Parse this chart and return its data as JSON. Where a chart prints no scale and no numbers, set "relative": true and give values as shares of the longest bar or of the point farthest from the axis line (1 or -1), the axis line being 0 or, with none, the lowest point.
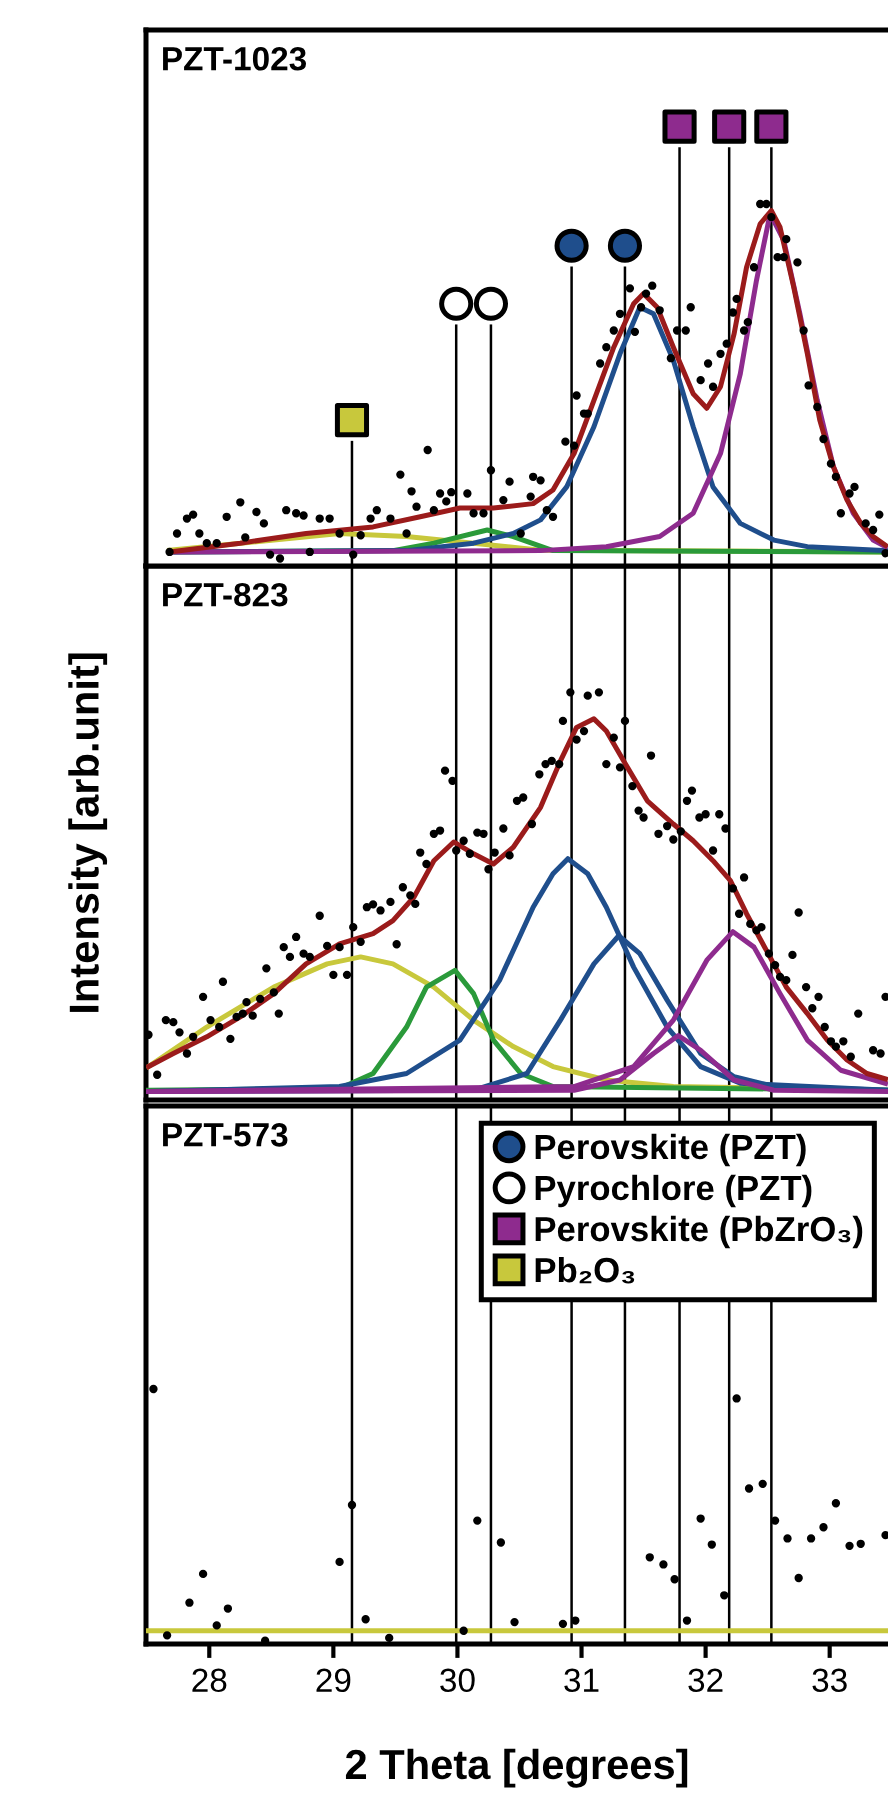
{
  "chart_data": [
    {
      "type": "scatter",
      "title": "PZT-1023",
      "relative": true,
      "xlim": [
        27.49,
        33.47
      ],
      "tick_labels": false,
      "legend": "bottom right",
      "ref_lines": [
        {
          "axis": "x",
          "value": 29.15,
          "color": "#000000"
        },
        {
          "axis": "x",
          "value": 29.99,
          "color": "#000000"
        },
        {
          "axis": "x",
          "value": 30.27,
          "color": "#000000"
        },
        {
          "axis": "x",
          "value": 30.92,
          "color": "#000000"
        },
        {
          "axis": "x",
          "value": 31.35,
          "color": "#000000"
        },
        {
          "axis": "x",
          "value": 31.79,
          "color": "#000000"
        },
        {
          "axis": "x",
          "value": 32.19,
          "color": "#000000"
        },
        {
          "axis": "x",
          "value": 32.53,
          "color": "#000000"
        }
      ],
      "series": [
        {
          "marker": "circle",
          "color": "#000000",
          "x": [
            27.68,
            27.74,
            27.82,
            27.87,
            27.92,
            27.98,
            28.06,
            28.14,
            28.25,
            28.29,
            28.38,
            28.44,
            28.49,
            28.57,
            28.62,
            28.7,
            28.76,
            28.81,
            28.89,
            28.97,
            29.05,
            29.16,
            29.22,
            29.3,
            29.35,
            29.46,
            29.54,
            29.59,
            29.63,
            29.67,
            29.76,
            29.81,
            29.86,
            29.91,
            29.95,
            30.08,
            30.13,
            30.21,
            30.27,
            30.37,
            30.42,
            30.51,
            30.59,
            30.61,
            30.67,
            30.72,
            30.77,
            30.87,
            30.94,
            30.96,
            31.02,
            31.05,
            31.15,
            31.2,
            31.26,
            31.31,
            31.39,
            31.43,
            31.48,
            31.52,
            31.57,
            31.63,
            31.72,
            31.77,
            31.84,
            31.88,
            31.96,
            32.02,
            32.06,
            32.12,
            32.17,
            32.22,
            32.25,
            32.31,
            32.34,
            32.39,
            32.44,
            32.49,
            32.53,
            32.58,
            32.63,
            32.65,
            32.74,
            32.79,
            32.83,
            32.9,
            32.95,
            33.01,
            33.05,
            33.09,
            33.16,
            33.2,
            33.29,
            33.35,
            33.4,
            33.45
          ],
          "values": [
            0.032,
            0.074,
            0.108,
            0.117,
            0.074,
            0.052,
            0.052,
            0.112,
            0.145,
            0.065,
            0.123,
            0.097,
            0.026,
            0.017,
            0.127,
            0.12,
            0.115,
            0.032,
            0.108,
            0.108,
            0.074,
            0.026,
            0.07,
            0.108,
            0.127,
            0.108,
            0.208,
            0.074,
            0.17,
            0.135,
            0.264,
            0.127,
            0.165,
            0.147,
            0.168,
            0.165,
            0.12,
            0.12,
            0.218,
            0.15,
            0.192,
            0.074,
            0.158,
            0.203,
            0.195,
            0.127,
            0.112,
            0.283,
            0.274,
            0.388,
            0.347,
            0.347,
            0.461,
            0.498,
            0.536,
            0.574,
            0.632,
            0.533,
            0.589,
            0.62,
            0.638,
            0.582,
            0.473,
            0.536,
            0.536,
            0.589,
            0.423,
            0.461,
            0.408,
            0.483,
            0.506,
            0.577,
            0.608,
            0.536,
            0.555,
            0.68,
            0.824,
            0.824,
            0.794,
            0.703,
            0.703,
            0.744,
            0.691,
            0.536,
            0.411,
            0.362,
            0.289,
            0.233,
            0.203,
            0.12,
            0.165,
            0.18,
            0.097,
            0.082,
            0.117,
            0.029
          ]
        },
        {
          "type": "line",
          "color": "#c8c83c",
          "x": [
            27.68,
            29.05,
            29.59,
            30.13,
            30.67,
            33.45
          ],
          "values": [
            0.036,
            0.074,
            0.067,
            0.052,
            0.036,
            0.032
          ]
        },
        {
          "type": "line",
          "color": "#2a9a3a",
          "x": [
            27.68,
            29.48,
            29.81,
            30.24,
            30.45,
            30.77,
            33.45
          ],
          "values": [
            0.032,
            0.035,
            0.052,
            0.082,
            0.067,
            0.035,
            0.032
          ]
        },
        {
          "type": "line",
          "color": "#1f4e8c",
          "x": [
            27.68,
            29.59,
            30.13,
            30.45,
            30.67,
            30.88,
            31.1,
            31.31,
            31.47,
            31.58,
            31.74,
            31.9,
            32.06,
            32.28,
            32.55,
            32.82,
            33.45
          ],
          "values": [
            0.032,
            0.035,
            0.052,
            0.074,
            0.105,
            0.18,
            0.317,
            0.483,
            0.589,
            0.574,
            0.468,
            0.317,
            0.18,
            0.097,
            0.059,
            0.044,
            0.035
          ]
        },
        {
          "type": "line",
          "color": "#8e2b8e",
          "x": [
            27.68,
            30.67,
            31.2,
            31.63,
            31.9,
            32.12,
            32.28,
            32.41,
            32.52,
            32.63,
            32.76,
            32.9,
            33.03,
            33.19,
            33.35,
            33.45
          ],
          "values": [
            0.032,
            0.035,
            0.044,
            0.067,
            0.12,
            0.256,
            0.438,
            0.65,
            0.802,
            0.741,
            0.574,
            0.377,
            0.226,
            0.12,
            0.059,
            0.044
          ]
        },
        {
          "type": "line",
          "color": "#9b1b1b",
          "x": [
            27.68,
            28.25,
            28.78,
            29.32,
            29.7,
            30.02,
            30.29,
            30.61,
            30.77,
            30.94,
            31.1,
            31.26,
            31.42,
            31.5,
            31.61,
            31.74,
            31.9,
            32.01,
            32.12,
            32.23,
            32.33,
            32.44,
            32.53,
            32.6,
            32.71,
            32.82,
            32.92,
            33.03,
            33.14,
            33.25,
            33.35,
            33.45
          ],
          "values": [
            0.032,
            0.052,
            0.074,
            0.089,
            0.112,
            0.132,
            0.132,
            0.142,
            0.173,
            0.256,
            0.377,
            0.498,
            0.597,
            0.62,
            0.589,
            0.498,
            0.392,
            0.359,
            0.408,
            0.529,
            0.68,
            0.779,
            0.809,
            0.771,
            0.635,
            0.483,
            0.332,
            0.226,
            0.15,
            0.097,
            0.067,
            0.047
          ]
        },
        {
          "name": "Perovskite (PZT)",
          "marker": "circle",
          "color": "#1f4e8c",
          "x": [
            30.92,
            31.35
          ],
          "values": [
            0.729,
            0.729
          ]
        },
        {
          "name": "Pyrochlore (PZT)",
          "marker": "circle",
          "color": "#ffffff",
          "x": [
            29.99,
            30.27
          ],
          "values": [
            0.597,
            0.597
          ]
        },
        {
          "name": "Perovskite (PbZrO₃)",
          "marker": "square",
          "color": "#8e2b8e",
          "x": [
            31.79,
            32.19,
            32.53
          ],
          "values": [
            1.0,
            1.0,
            1.0
          ]
        },
        {
          "name": "Pb₂O₃",
          "marker": "square",
          "color": "#c8c83c",
          "x": [
            29.15
          ],
          "values": [
            0.332
          ]
        }
      ]
    },
    {
      "type": "scatter",
      "title": "PZT-823",
      "ylabel": "Intensity [arb.unit]",
      "relative": true,
      "xlim": [
        27.49,
        33.47
      ],
      "tick_labels": false,
      "ref_lines": [
        {
          "axis": "x",
          "value": 29.15,
          "color": "#000000"
        },
        {
          "axis": "x",
          "value": 29.99,
          "color": "#000000"
        },
        {
          "axis": "x",
          "value": 30.27,
          "color": "#000000"
        },
        {
          "axis": "x",
          "value": 30.92,
          "color": "#000000"
        },
        {
          "axis": "x",
          "value": 31.35,
          "color": "#000000"
        },
        {
          "axis": "x",
          "value": 31.79,
          "color": "#000000"
        },
        {
          "axis": "x",
          "value": 32.19,
          "color": "#000000"
        },
        {
          "axis": "x",
          "value": 32.53,
          "color": "#000000"
        }
      ],
      "series": [
        {
          "marker": "circle",
          "color": "#000000",
          "x": [
            27.51,
            27.58,
            27.65,
            27.71,
            27.76,
            27.82,
            27.87,
            27.95,
            28.01,
            28.08,
            28.11,
            28.17,
            28.22,
            28.27,
            28.3,
            28.35,
            28.41,
            28.46,
            28.52,
            28.56,
            28.6,
            28.65,
            28.7,
            28.76,
            28.81,
            28.89,
            28.95,
            29.0,
            29.05,
            29.11,
            29.16,
            29.22,
            29.27,
            29.32,
            29.38,
            29.46,
            29.51,
            29.56,
            29.62,
            29.66,
            29.7,
            29.75,
            29.81,
            29.86,
            29.9,
            29.96,
            29.99,
            30.05,
            30.1,
            30.16,
            30.21,
            30.25,
            30.3,
            30.37,
            30.42,
            30.48,
            30.53,
            30.6,
            30.66,
            30.71,
            30.76,
            30.82,
            30.85,
            30.91,
            30.96,
            31.02,
            31.05,
            31.14,
            31.2,
            31.26,
            31.31,
            31.35,
            31.41,
            31.46,
            31.5,
            31.56,
            31.62,
            31.69,
            31.74,
            31.8,
            31.85,
            31.89,
            31.95,
            32.0,
            32.06,
            32.11,
            32.16,
            32.22,
            32.27,
            32.31,
            32.36,
            32.41,
            32.45,
            32.51,
            32.56,
            32.6,
            32.65,
            32.7,
            32.75,
            32.81,
            32.86,
            32.91,
            32.96,
            33.01,
            33.05,
            33.11,
            33.17,
            33.23,
            33.35,
            33.41,
            33.45
          ],
          "values": [
            0.16,
            0.062,
            0.196,
            0.191,
            0.166,
            0.114,
            0.155,
            0.253,
            0.196,
            0.179,
            0.29,
            0.15,
            0.204,
            0.212,
            0.24,
            0.207,
            0.248,
            0.323,
            0.264,
            0.212,
            0.375,
            0.351,
            0.4,
            0.359,
            0.351,
            0.452,
            0.378,
            0.307,
            0.375,
            0.307,
            0.424,
            0.388,
            0.473,
            0.48,
            0.465,
            0.486,
            0.382,
            0.522,
            0.502,
            0.481,
            0.607,
            0.579,
            0.653,
            0.661,
            0.808,
            0.783,
            0.612,
            0.636,
            0.604,
            0.656,
            0.653,
            0.566,
            0.607,
            0.666,
            0.6,
            0.734,
            0.742,
            0.677,
            0.799,
            0.824,
            0.832,
            0.824,
            0.93,
            1.0,
            0.884,
            0.905,
            0.992,
            1.0,
            0.824,
            0.889,
            0.816,
            0.93,
            0.77,
            0.71,
            0.693,
            0.845,
            0.653,
            0.672,
            0.639,
            0.659,
            0.734,
            0.759,
            0.693,
            0.701,
            0.612,
            0.701,
            0.666,
            0.519,
            0.457,
            0.546,
            0.432,
            0.416,
            0.424,
            0.359,
            0.331,
            0.302,
            0.294,
            0.356,
            0.46,
            0.277,
            0.225,
            0.253,
            0.179,
            0.144,
            0.131,
            0.144,
            0.106,
            0.212,
            0.122,
            0.114,
            0.253
          ]
        },
        {
          "type": "line",
          "color": "#c8c83c",
          "x": [
            27.51,
            27.98,
            28.52,
            28.95,
            29.22,
            29.48,
            29.81,
            30.13,
            30.45,
            30.77,
            31.2,
            31.74,
            33.45
          ],
          "values": [
            0.082,
            0.179,
            0.277,
            0.334,
            0.351,
            0.334,
            0.277,
            0.196,
            0.131,
            0.082,
            0.049,
            0.033,
            0.024
          ]
        },
        {
          "type": "line",
          "color": "#2a9a3a",
          "x": [
            27.51,
            29.05,
            29.32,
            29.59,
            29.75,
            29.98,
            30.13,
            30.29,
            30.51,
            30.77,
            33.45
          ],
          "values": [
            0.024,
            0.028,
            0.065,
            0.179,
            0.277,
            0.318,
            0.261,
            0.147,
            0.065,
            0.033,
            0.024
          ]
        },
        {
          "type": "line",
          "color": "#1f4e8c",
          "x": [
            27.51,
            29.05,
            29.59,
            30.02,
            30.34,
            30.61,
            30.77,
            30.89,
            31.05,
            31.2,
            31.42,
            31.69,
            31.96,
            32.28,
            33.45
          ],
          "values": [
            0.021,
            0.033,
            0.065,
            0.147,
            0.294,
            0.473,
            0.555,
            0.592,
            0.555,
            0.473,
            0.326,
            0.179,
            0.082,
            0.041,
            0.024
          ]
        },
        {
          "type": "line",
          "color": "#1f4e8c",
          "x": [
            27.51,
            30.13,
            30.56,
            30.83,
            31.1,
            31.3,
            31.47,
            31.69,
            31.96,
            32.23,
            32.55,
            33.45
          ],
          "values": [
            0.021,
            0.024,
            0.065,
            0.196,
            0.334,
            0.403,
            0.359,
            0.245,
            0.114,
            0.057,
            0.033,
            0.024
          ]
        },
        {
          "type": "line",
          "color": "#8e2b8e",
          "x": [
            27.51,
            30.94,
            31.42,
            31.74,
            32.01,
            32.22,
            32.39,
            32.6,
            32.82,
            33.09,
            33.45
          ],
          "values": [
            0.021,
            0.033,
            0.082,
            0.196,
            0.343,
            0.413,
            0.375,
            0.261,
            0.147,
            0.073,
            0.041
          ]
        },
        {
          "type": "line",
          "color": "#8e2b8e",
          "x": [
            27.51,
            30.94,
            31.31,
            31.58,
            31.78,
            31.96,
            32.23,
            32.55,
            33.45
          ],
          "values": [
            0.021,
            0.024,
            0.049,
            0.114,
            0.158,
            0.122,
            0.049,
            0.024,
            0.021
          ]
        },
        {
          "type": "line",
          "color": "#9b1b1b",
          "x": [
            27.51,
            27.71,
            27.98,
            28.25,
            28.52,
            28.78,
            29.05,
            29.32,
            29.48,
            29.65,
            29.81,
            29.97,
            30.13,
            30.29,
            30.45,
            30.67,
            30.83,
            30.96,
            31.1,
            31.2,
            31.37,
            31.53,
            31.74,
            31.9,
            32.06,
            32.2,
            32.33,
            32.49,
            32.65,
            32.82,
            32.98,
            33.14,
            33.3,
            33.45
          ],
          "values": [
            0.082,
            0.114,
            0.155,
            0.204,
            0.261,
            0.334,
            0.383,
            0.408,
            0.44,
            0.498,
            0.587,
            0.633,
            0.604,
            0.579,
            0.62,
            0.718,
            0.832,
            0.914,
            0.935,
            0.905,
            0.816,
            0.734,
            0.677,
            0.636,
            0.587,
            0.538,
            0.457,
            0.367,
            0.277,
            0.212,
            0.147,
            0.098,
            0.065,
            0.052
          ]
        }
      ]
    },
    {
      "type": "scatter",
      "title": "PZT-573",
      "xlabel": "2 Theta [degrees]",
      "relative": true,
      "xlim": [
        27.49,
        33.47
      ],
      "xticks": [
        28,
        29,
        30,
        31,
        32,
        33
      ],
      "tick_labels": "x",
      "ref_lines": [
        {
          "axis": "x",
          "value": 29.15,
          "color": "#000000"
        },
        {
          "axis": "x",
          "value": 29.99,
          "color": "#000000"
        },
        {
          "axis": "x",
          "value": 30.27,
          "color": "#000000"
        },
        {
          "axis": "x",
          "value": 30.92,
          "color": "#000000"
        },
        {
          "axis": "x",
          "value": 31.35,
          "color": "#000000"
        },
        {
          "axis": "x",
          "value": 31.79,
          "color": "#000000"
        },
        {
          "axis": "x",
          "value": 32.19,
          "color": "#000000"
        },
        {
          "axis": "x",
          "value": 32.53,
          "color": "#000000"
        }
      ],
      "series": [
        {
          "marker": "circle",
          "color": "#000000",
          "x": [
            27.55,
            27.66,
            27.84,
            27.95,
            28.06,
            28.15,
            28.45,
            29.05,
            29.15,
            29.26,
            29.45,
            30.05,
            30.16,
            30.35,
            30.46,
            30.85,
            30.95,
            31.55,
            31.66,
            31.75,
            31.85,
            31.96,
            32.05,
            32.15,
            32.25,
            32.35,
            32.46,
            32.56,
            32.66,
            32.75,
            32.85,
            32.95,
            33.05,
            33.16,
            33.25,
            33.45
          ],
          "values": [
            1.0,
            0.034,
            0.162,
            0.275,
            0.073,
            0.139,
            0.013,
            0.322,
            0.545,
            0.097,
            0.024,
            0.052,
            0.484,
            0.398,
            0.086,
            0.079,
            0.092,
            0.34,
            0.312,
            0.254,
            0.092,
            0.492,
            0.39,
            0.191,
            0.963,
            0.61,
            0.628,
            0.484,
            0.414,
            0.259,
            0.414,
            0.458,
            0.552,
            0.385,
            0.393,
            0.427
          ]
        },
        {
          "type": "line",
          "color": "#c8c83c",
          "x": [
            27.49,
            33.47
          ],
          "values": [
            0.052,
            0.052
          ]
        }
      ]
    }
  ]
}
